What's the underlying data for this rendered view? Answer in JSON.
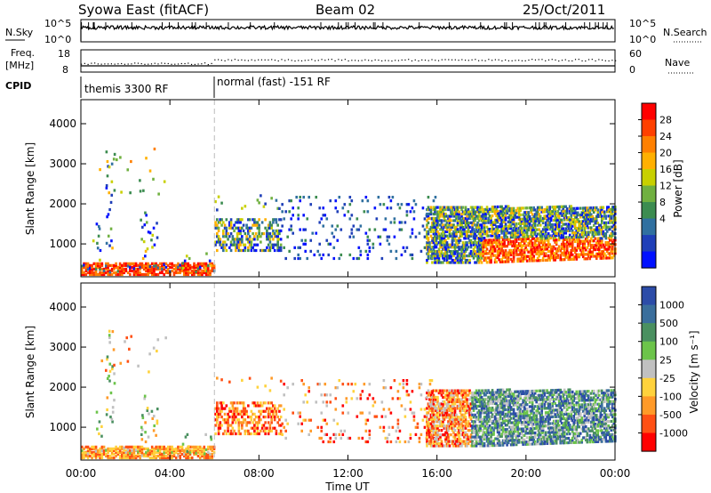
{
  "header": {
    "title": "Syowa East (fitACF)",
    "beam": "Beam 02",
    "date": "25/Oct/2011"
  },
  "top_panels": {
    "nsky_label": "N.Sky",
    "nsky_ticks": [
      "10^5",
      "10^0"
    ],
    "nsearch_label": "N.Search",
    "nsearch_ticks": [
      "10^5",
      "10^0"
    ],
    "freq_label_line1": "Freq.",
    "freq_label_line2": "[MHz]",
    "freq_ticks": [
      "18",
      "8"
    ],
    "nave_label": "Nave",
    "nave_ticks": [
      "60",
      "0"
    ],
    "cpid_label": "CPID",
    "cpid_segments": [
      {
        "label": "themis 3300 RF",
        "start_hour": 0,
        "end_hour": 6
      },
      {
        "label": "normal (fast) -151 RF",
        "start_hour": 6,
        "end_hour": 24
      }
    ]
  },
  "x_axis": {
    "label": "Time UT",
    "ticks": [
      "00:00",
      "04:00",
      "08:00",
      "12:00",
      "16:00",
      "20:00",
      "00:00"
    ],
    "tick_hours": [
      0,
      4,
      8,
      12,
      16,
      20,
      24
    ],
    "range_hours": [
      0,
      24
    ]
  },
  "chart_data": [
    {
      "type": "heatmap",
      "title": "",
      "xlabel": "",
      "ylabel": "Slant Range [km]",
      "yticks": [
        1000,
        2000,
        3000,
        4000
      ],
      "ylim": [
        180,
        4600
      ],
      "colorbar_label": "Power [dB]",
      "colorbar_ticks": [
        "28",
        "24",
        "20",
        "16",
        "12",
        "8",
        "4"
      ],
      "colors": [
        "#ff0000",
        "#ff4000",
        "#ff8000",
        "#ffb000",
        "#c8d000",
        "#70b040",
        "#3c8c50",
        "#3070a0",
        "#1f3fb8",
        "#0010ff"
      ]
    },
    {
      "type": "heatmap",
      "title": "",
      "xlabel": "Time UT",
      "ylabel": "Slant Range [km]",
      "yticks": [
        1000,
        2000,
        3000,
        4000
      ],
      "ylim": [
        180,
        4600
      ],
      "colorbar_label": "Velocity  [m s⁻¹]",
      "colorbar_ticks": [
        "1000",
        "500",
        "100",
        "25",
        "-25",
        "-100",
        "-500",
        "-1000"
      ],
      "colors": [
        "#2c4ca8",
        "#3a6e9c",
        "#4a9060",
        "#6cc44a",
        "#c0c0c0",
        "#ffd23c",
        "#ff9a28",
        "#ff5014",
        "#ff0000"
      ]
    }
  ]
}
